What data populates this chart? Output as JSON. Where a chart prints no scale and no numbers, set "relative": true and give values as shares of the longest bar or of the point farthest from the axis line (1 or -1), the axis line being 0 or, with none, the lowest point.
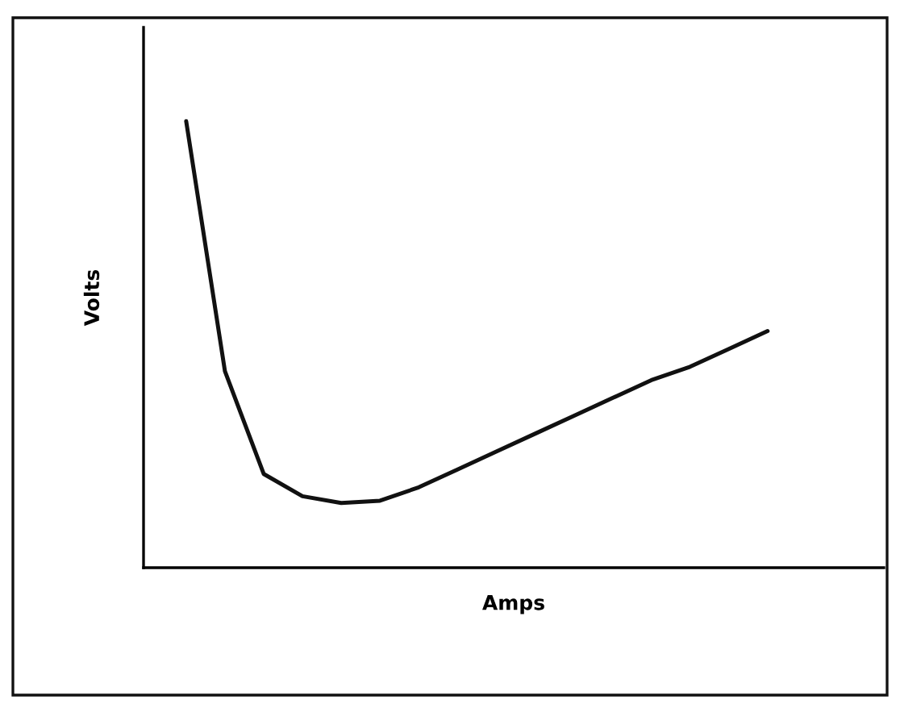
{
  "chart_data": {
    "type": "line",
    "relative": true,
    "xlabel": "Amps",
    "ylabel": "Volts",
    "color": "#111111",
    "marker": "none",
    "line_style": "solid",
    "legend": false,
    "tick_labels": false,
    "categories": [
      null,
      null,
      null,
      null,
      null,
      null,
      null,
      null,
      null,
      null,
      null,
      null,
      null,
      null,
      null,
      null
    ],
    "values": [
      1.0,
      0.44,
      0.21,
      0.16,
      0.145,
      0.15,
      0.18,
      0.22,
      0.26,
      0.3,
      0.34,
      0.38,
      0.42,
      0.45,
      0.49,
      0.53
    ]
  }
}
